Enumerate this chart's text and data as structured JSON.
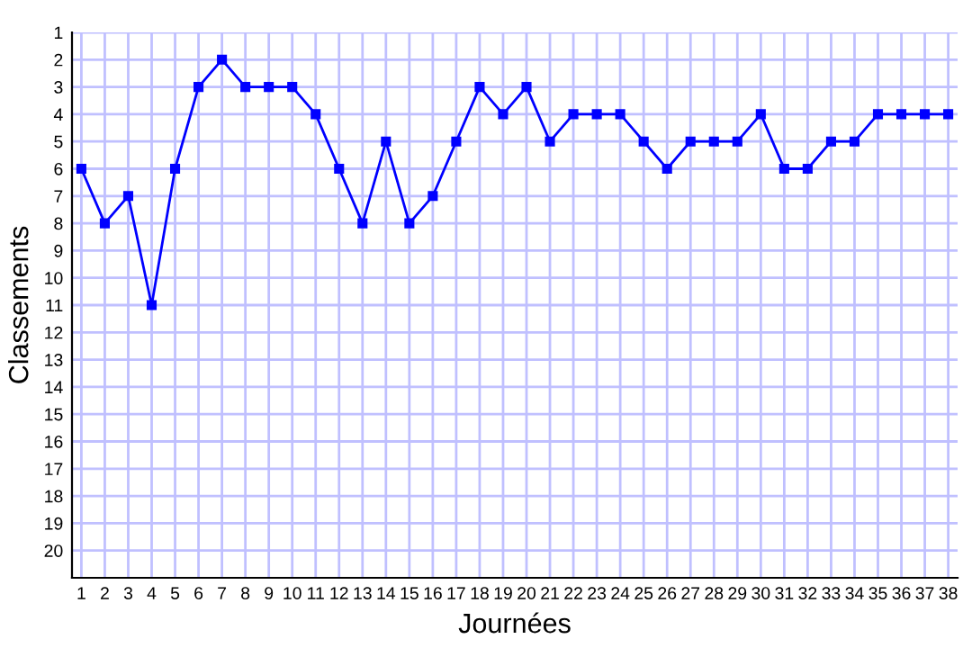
{
  "chart_data": {
    "type": "line",
    "xlabel": "Journées",
    "ylabel": "Classements",
    "x": [
      1,
      2,
      3,
      4,
      5,
      6,
      7,
      8,
      9,
      10,
      11,
      12,
      13,
      14,
      15,
      16,
      17,
      18,
      19,
      20,
      21,
      22,
      23,
      24,
      25,
      26,
      27,
      28,
      29,
      30,
      31,
      32,
      33,
      34,
      35,
      36,
      37,
      38
    ],
    "series": [
      {
        "color": "#0000ff",
        "values": [
          6,
          8,
          7,
          11,
          6,
          3,
          2,
          3,
          3,
          3,
          4,
          6,
          8,
          5,
          8,
          7,
          5,
          3,
          4,
          3,
          5,
          4,
          4,
          4,
          5,
          6,
          5,
          5,
          5,
          4,
          6,
          6,
          5,
          5,
          4,
          4,
          4,
          4
        ]
      }
    ],
    "xlim": [
      0.6,
      38.4
    ],
    "ylim": [
      21,
      1
    ],
    "xticks": [
      1,
      2,
      3,
      4,
      5,
      6,
      7,
      8,
      9,
      10,
      11,
      12,
      13,
      14,
      15,
      16,
      17,
      18,
      19,
      20,
      21,
      22,
      23,
      24,
      25,
      26,
      27,
      28,
      29,
      30,
      31,
      32,
      33,
      34,
      35,
      36,
      37,
      38
    ],
    "yticks": [
      1,
      2,
      3,
      4,
      5,
      6,
      7,
      8,
      9,
      10,
      11,
      12,
      13,
      14,
      15,
      16,
      17,
      18,
      19,
      20
    ],
    "grid": true,
    "marker": "square",
    "line_style": "solid",
    "legend": false
  }
}
